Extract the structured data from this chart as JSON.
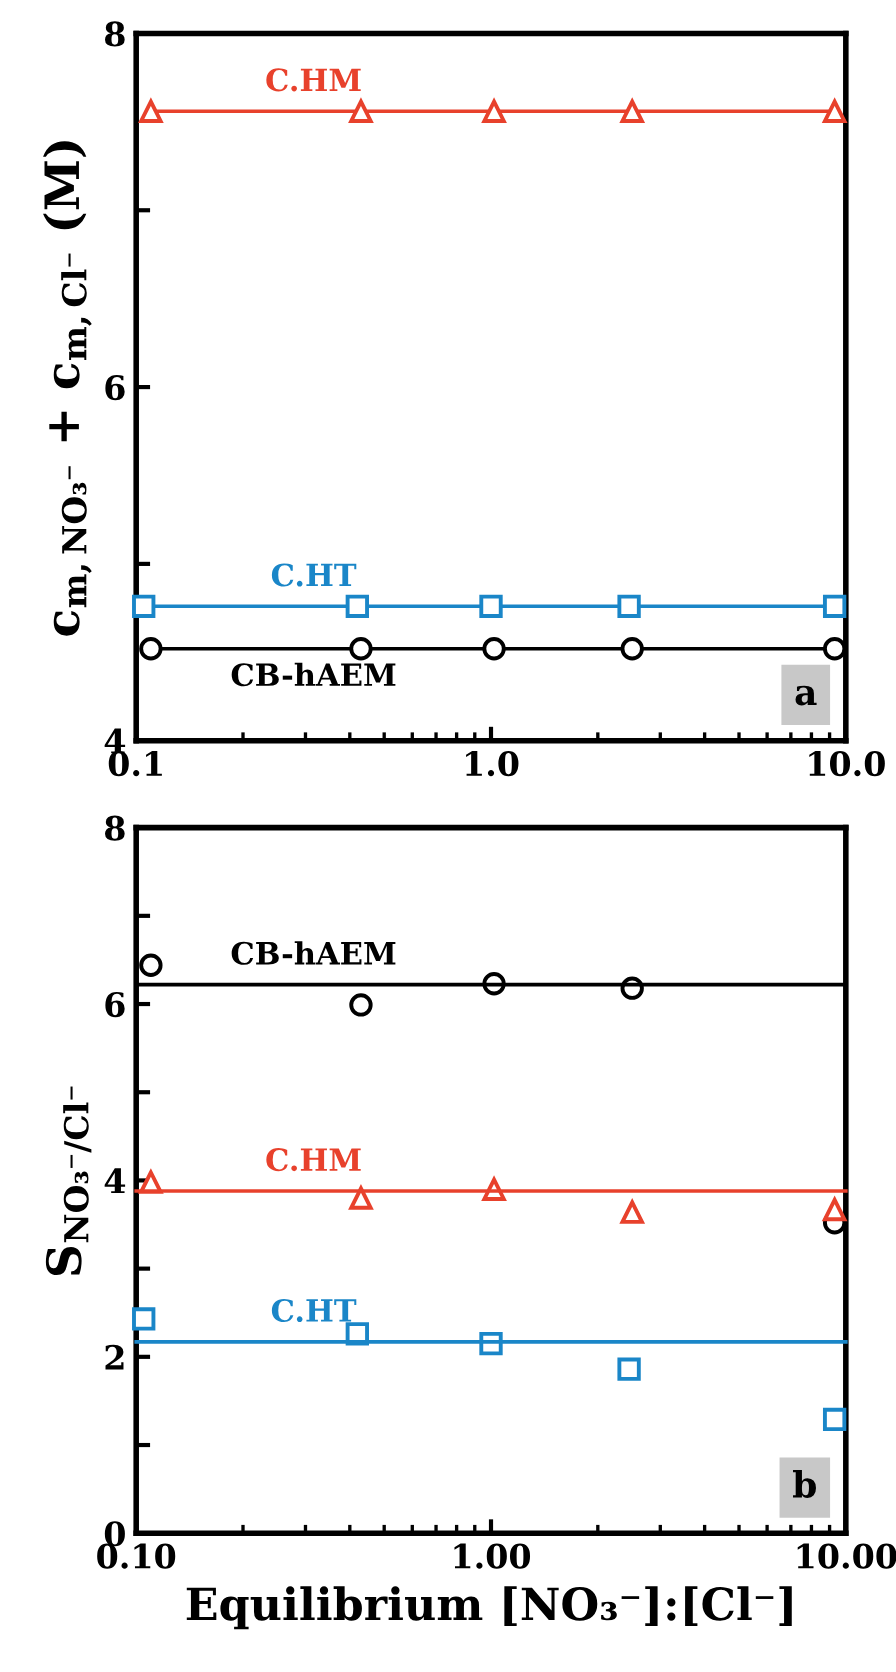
{
  "chart_data": [
    {
      "type": "line",
      "ylabel": "c$_{m,NO₃⁻}$ + c$_{m,Cl⁻}$ (M)",
      "log": "x",
      "grid": false,
      "xlim": [
        0.1,
        10
      ],
      "xticks": [
        {
          "value": 0.1,
          "label": "0.1"
        },
        {
          "value": 1,
          "label": "1.0"
        },
        {
          "value": 10,
          "label": "10.0"
        }
      ],
      "ylim": [
        4,
        8
      ],
      "yticks": [
        4,
        {
          "value": 5,
          "label": null
        },
        6,
        {
          "value": 7,
          "label": null
        },
        8
      ],
      "series": [
        {
          "name": "C.HM",
          "color": "#e8412c",
          "marker": "triangle",
          "x": [
            0.11,
            0.43,
            1.02,
            2.5,
            9.3
          ],
          "values": [
            7.56,
            7.56,
            7.56,
            7.56,
            7.56
          ]
        },
        {
          "name": "C.HT",
          "color": "#1a86c8",
          "marker": "square",
          "x": [
            0.105,
            0.42,
            1.0,
            2.45,
            9.3
          ],
          "values": [
            4.76,
            4.76,
            4.76,
            4.76,
            4.76
          ]
        },
        {
          "name": "CB-hAEM",
          "color": "#000000",
          "marker": "circle",
          "x": [
            0.11,
            0.43,
            1.02,
            2.5,
            9.3
          ],
          "values": [
            4.52,
            4.52,
            4.52,
            4.52,
            4.52
          ]
        }
      ],
      "annotations": [
        "a"
      ]
    },
    {
      "type": "scatter",
      "ylabel": "S$_{NO₃⁻/Cl⁻}$",
      "xlabel": "Equilibrium [NO₃⁻]:[Cl⁻]",
      "log": "x",
      "grid": false,
      "xlim": [
        0.1,
        10
      ],
      "xticks": [
        {
          "value": 0.1,
          "label": "0.10"
        },
        {
          "value": 1,
          "label": "1.00"
        },
        {
          "value": 10,
          "label": "10.00"
        }
      ],
      "ylim": [
        0,
        8
      ],
      "yticks": [
        0,
        {
          "value": 1,
          "label": null
        },
        2,
        {
          "value": 3,
          "label": null
        },
        4,
        {
          "value": 5,
          "label": null
        },
        6,
        {
          "value": 7,
          "label": null
        },
        8
      ],
      "series": [
        {
          "color": "#000000",
          "marker": "circle",
          "x": [
            0.11,
            0.43,
            1.02,
            2.5,
            9.3
          ],
          "values": [
            6.44,
            5.99,
            6.23,
            6.18,
            3.52
          ]
        },
        {
          "color": "#e8412c",
          "marker": "triangle",
          "x": [
            0.11,
            0.43,
            1.02,
            2.5,
            9.3
          ],
          "values": [
            3.98,
            3.8,
            3.9,
            3.64,
            3.67
          ]
        },
        {
          "color": "#1a86c8",
          "marker": "square",
          "x": [
            0.105,
            0.42,
            1.0,
            2.45,
            9.3
          ],
          "values": [
            2.43,
            2.26,
            2.15,
            1.86,
            1.29
          ]
        },
        {
          "name": "CB-hAEM",
          "type": "line",
          "marker": "none",
          "color": "#000000",
          "x": [
            0.1,
            10
          ],
          "values": [
            6.22,
            6.22
          ]
        },
        {
          "name": "C.HM",
          "type": "line",
          "marker": "none",
          "color": "#e8412c",
          "x": [
            0.1,
            10
          ],
          "values": [
            3.88,
            3.88
          ]
        },
        {
          "name": "C.HT",
          "type": "line",
          "marker": "none",
          "color": "#1a86c8",
          "x": [
            0.1,
            10
          ],
          "values": [
            2.17,
            2.17
          ]
        }
      ],
      "annotations": [
        "b"
      ]
    }
  ]
}
